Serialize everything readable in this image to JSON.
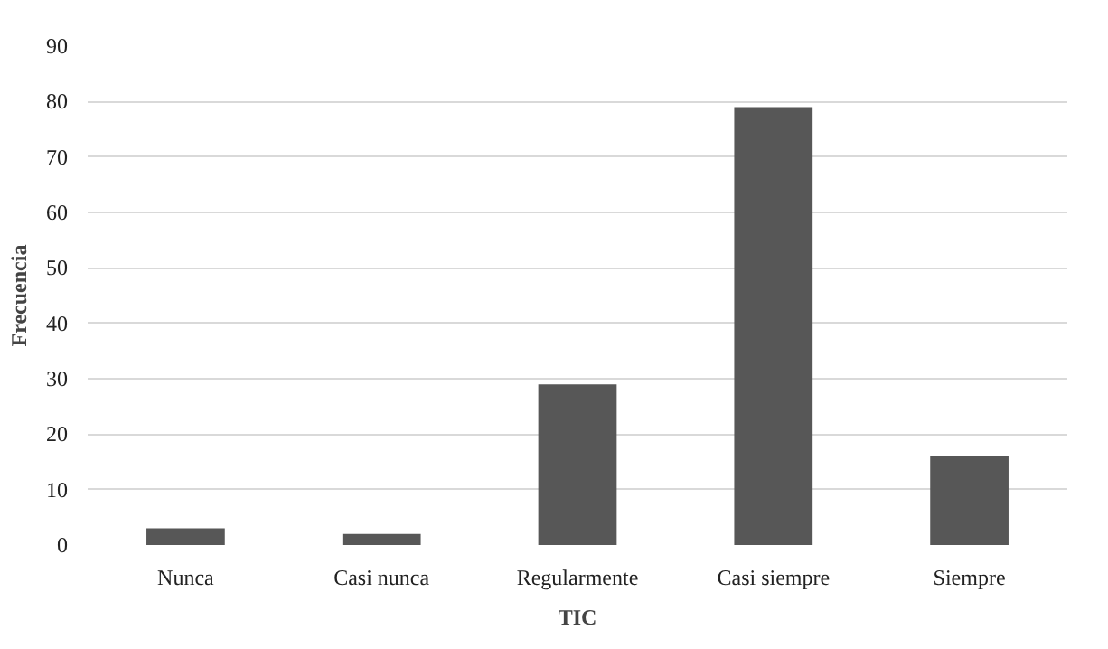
{
  "chart_data": {
    "type": "bar",
    "xlabel": "TIC",
    "ylabel": "Frecuencia",
    "categories": [
      "Nunca",
      "Casi nunca",
      "Regularmente",
      "Casi siempre",
      "Siempre"
    ],
    "values": [
      3,
      2,
      29,
      79,
      16
    ],
    "color": "#575757",
    "ylim": [
      0,
      90
    ],
    "yticks": [
      0,
      10,
      20,
      30,
      40,
      50,
      60,
      70,
      80,
      90
    ],
    "grid": "y"
  }
}
